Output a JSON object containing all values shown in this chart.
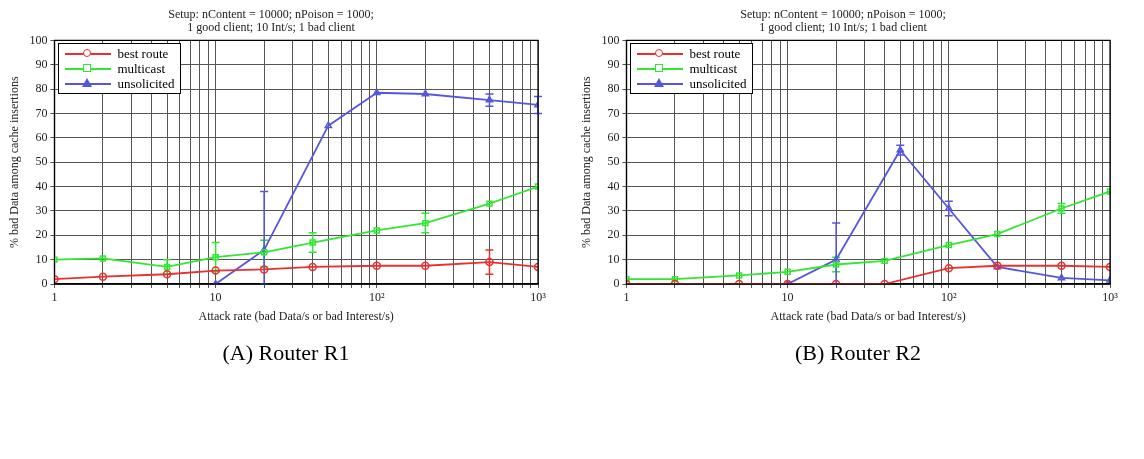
{
  "chart_data": [
    {
      "type": "line",
      "title": "Setup: nContent = 10000; nPoison = 1000;\n1 good client; 10 Int/s; 1 bad client",
      "xlabel": "Attack rate (bad Data/s or bad Interest/s)",
      "ylabel": "% bad Data among cache insertions",
      "annotations": [
        "(A) Router R1"
      ],
      "log": "x",
      "grid": true,
      "legend": "top left",
      "xlim": [
        1,
        1000
      ],
      "xticks": [
        {
          "value": 1,
          "label": "1"
        },
        {
          "value": 2,
          "label": null
        },
        {
          "value": 3,
          "label": null
        },
        {
          "value": 4,
          "label": null
        },
        {
          "value": 5,
          "label": null
        },
        {
          "value": 6,
          "label": null
        },
        {
          "value": 7,
          "label": null
        },
        {
          "value": 8,
          "label": null
        },
        {
          "value": 9,
          "label": null
        },
        {
          "value": 10,
          "label": "10"
        },
        {
          "value": 20,
          "label": null
        },
        {
          "value": 30,
          "label": null
        },
        {
          "value": 40,
          "label": null
        },
        {
          "value": 50,
          "label": null
        },
        {
          "value": 60,
          "label": null
        },
        {
          "value": 70,
          "label": null
        },
        {
          "value": 80,
          "label": null
        },
        {
          "value": 90,
          "label": null
        },
        {
          "value": 100,
          "label": "10²"
        },
        {
          "value": 200,
          "label": null
        },
        {
          "value": 300,
          "label": null
        },
        {
          "value": 400,
          "label": null
        },
        {
          "value": 500,
          "label": null
        },
        {
          "value": 600,
          "label": null
        },
        {
          "value": 700,
          "label": null
        },
        {
          "value": 800,
          "label": null
        },
        {
          "value": 900,
          "label": null
        },
        {
          "value": 1000,
          "label": "10³"
        }
      ],
      "ylim": [
        0,
        100
      ],
      "yticks": [
        0,
        10,
        20,
        30,
        40,
        50,
        60,
        70,
        80,
        90,
        100
      ],
      "series": [
        {
          "name": "best route",
          "color": "#e8312f",
          "marker": "circle",
          "x": [
            1,
            2,
            5,
            10,
            20,
            40,
            100,
            200,
            500,
            1000
          ],
          "values": [
            2,
            3,
            4,
            5.5,
            6,
            7,
            7.5,
            7.5,
            9,
            7
          ],
          "errors": [
            null,
            null,
            null,
            null,
            null,
            null,
            null,
            null,
            [
              4,
              14
            ],
            null
          ]
        },
        {
          "name": "multicast",
          "color": "#33e633",
          "marker": "square",
          "x": [
            1,
            2,
            5,
            10,
            20,
            40,
            100,
            200,
            500,
            1000
          ],
          "values": [
            10,
            10.5,
            7,
            11,
            13,
            17,
            22,
            25,
            33,
            40
          ],
          "errors": [
            null,
            null,
            [
              4,
              10
            ],
            [
              5,
              17
            ],
            [
              7,
              18
            ],
            [
              13,
              21
            ],
            null,
            [
              21,
              29
            ],
            null,
            null
          ]
        },
        {
          "name": "unsolicited",
          "color": "#5555dd",
          "marker": "triangle",
          "x": [
            10,
            20,
            50,
            100,
            200,
            500,
            1000
          ],
          "values": [
            0,
            14,
            65,
            78.5,
            78,
            75.5,
            73.5
          ],
          "errors": [
            null,
            [
              0,
              38
            ],
            null,
            null,
            null,
            [
              73,
              78
            ],
            [
              70,
              77
            ]
          ]
        }
      ]
    },
    {
      "type": "line",
      "title": "Setup: nContent = 10000; nPoison = 1000;\n1 good client; 10 Int/s; 1 bad client",
      "xlabel": "Attack rate (bad Data/s or bad Interest/s)",
      "ylabel": "% bad Data among cache insertions",
      "annotations": [
        "(B) Router R2"
      ],
      "log": "x",
      "grid": true,
      "legend": "top left",
      "xlim": [
        1,
        1000
      ],
      "xticks": [
        {
          "value": 1,
          "label": "1"
        },
        {
          "value": 2,
          "label": null
        },
        {
          "value": 3,
          "label": null
        },
        {
          "value": 4,
          "label": null
        },
        {
          "value": 5,
          "label": null
        },
        {
          "value": 6,
          "label": null
        },
        {
          "value": 7,
          "label": null
        },
        {
          "value": 8,
          "label": null
        },
        {
          "value": 9,
          "label": null
        },
        {
          "value": 10,
          "label": "10"
        },
        {
          "value": 20,
          "label": null
        },
        {
          "value": 30,
          "label": null
        },
        {
          "value": 40,
          "label": null
        },
        {
          "value": 50,
          "label": null
        },
        {
          "value": 60,
          "label": null
        },
        {
          "value": 70,
          "label": null
        },
        {
          "value": 80,
          "label": null
        },
        {
          "value": 90,
          "label": null
        },
        {
          "value": 100,
          "label": "10²"
        },
        {
          "value": 200,
          "label": null
        },
        {
          "value": 300,
          "label": null
        },
        {
          "value": 400,
          "label": null
        },
        {
          "value": 500,
          "label": null
        },
        {
          "value": 600,
          "label": null
        },
        {
          "value": 700,
          "label": null
        },
        {
          "value": 800,
          "label": null
        },
        {
          "value": 900,
          "label": null
        },
        {
          "value": 1000,
          "label": "10³"
        }
      ],
      "ylim": [
        0,
        100
      ],
      "yticks": [
        0,
        10,
        20,
        30,
        40,
        50,
        60,
        70,
        80,
        90,
        100
      ],
      "series": [
        {
          "name": "best route",
          "color": "#e8312f",
          "marker": "circle",
          "x": [
            1,
            2,
            5,
            10,
            20,
            40,
            100,
            200,
            500,
            1000
          ],
          "values": [
            0,
            0,
            0,
            0,
            0,
            0,
            6.5,
            7.5,
            7.5,
            7
          ]
        },
        {
          "name": "multicast",
          "color": "#33e633",
          "marker": "square",
          "x": [
            1,
            2,
            5,
            10,
            20,
            40,
            100,
            200,
            500,
            1000
          ],
          "values": [
            2,
            2,
            3.5,
            5,
            8,
            9.5,
            16,
            20.5,
            31,
            38
          ],
          "errors": [
            null,
            null,
            null,
            null,
            [
              5,
              11
            ],
            null,
            null,
            null,
            [
              29,
              33
            ],
            null
          ]
        },
        {
          "name": "unsolicited",
          "color": "#5555dd",
          "marker": "triangle",
          "x": [
            10,
            20,
            50,
            100,
            200,
            500,
            1000
          ],
          "values": [
            0,
            10,
            55,
            31,
            7,
            2.5,
            1.5
          ],
          "errors": [
            null,
            [
              0,
              25
            ],
            [
              53,
              57
            ],
            [
              28,
              34
            ],
            null,
            null,
            null
          ]
        }
      ]
    }
  ]
}
